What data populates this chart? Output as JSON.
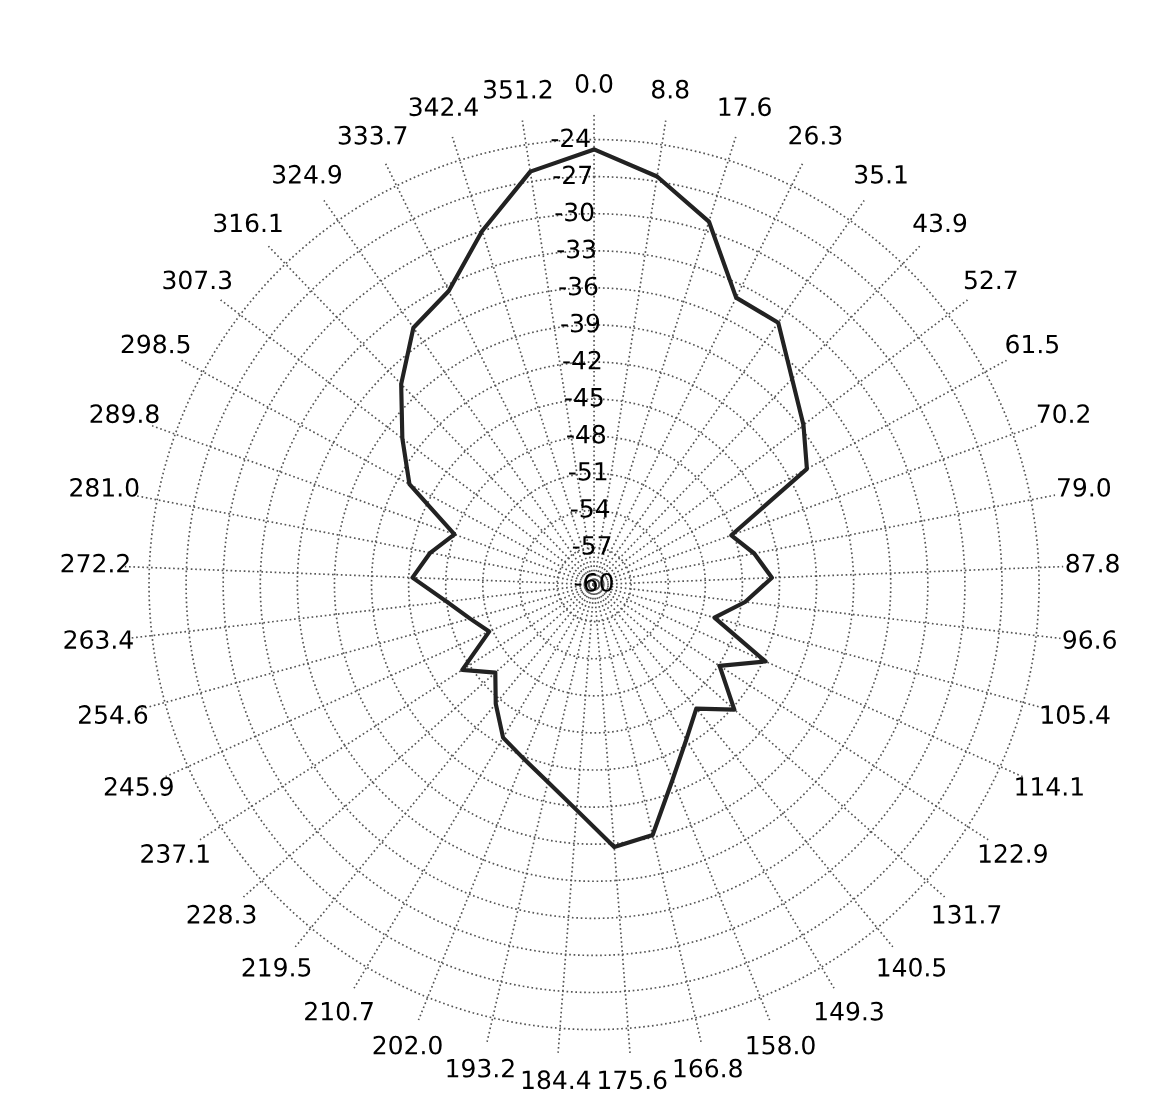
{
  "chart_data": {
    "type": "radar",
    "categories": [
      "0.0",
      "8.8",
      "17.6",
      "26.3",
      "35.1",
      "43.9",
      "52.7",
      "61.5",
      "70.2",
      "79.0",
      "87.8",
      "96.6",
      "105.4",
      "114.1",
      "122.9",
      "131.7",
      "140.5",
      "149.3",
      "158.0",
      "166.8",
      "175.6",
      "184.4",
      "193.2",
      "202.0",
      "210.7",
      "219.5",
      "228.3",
      "237.1",
      "245.9",
      "254.6",
      "263.4",
      "272.2",
      "281.0",
      "289.8",
      "298.5",
      "307.3",
      "316.1",
      "324.9",
      "333.7",
      "342.4",
      "351.2"
    ],
    "series": [
      {
        "color": "#222222",
        "values": [
          -24.8,
          -26.6,
          -29.2,
          -34.1,
          -34.1,
          -36.9,
          -38.7,
          -40.4,
          -48.2,
          -46.8,
          -45.6,
          -47.7,
          -49.9,
          -44.8,
          -47.9,
          -44.8,
          -47.0,
          -45.4,
          -43.0,
          -39.2,
          -38.7,
          -41.7,
          -43.6,
          -44.8,
          -45.6,
          -47.5,
          -49.3,
          -47.3,
          -50.7,
          -49.6,
          -48.0,
          -45.3,
          -46.5,
          -48.0,
          -43.0,
          -40.5,
          -37.5,
          -34.6,
          -33.5,
          -30.0,
          -26.2
        ]
      }
    ],
    "ylim": [
      -60,
      -22
    ],
    "yticks": [
      -60,
      -57,
      -54,
      -51,
      -48,
      -45,
      -42,
      -39,
      -36,
      -33,
      -30,
      -27,
      -24
    ],
    "grid": true,
    "marker": "none",
    "line_style": "solid"
  }
}
